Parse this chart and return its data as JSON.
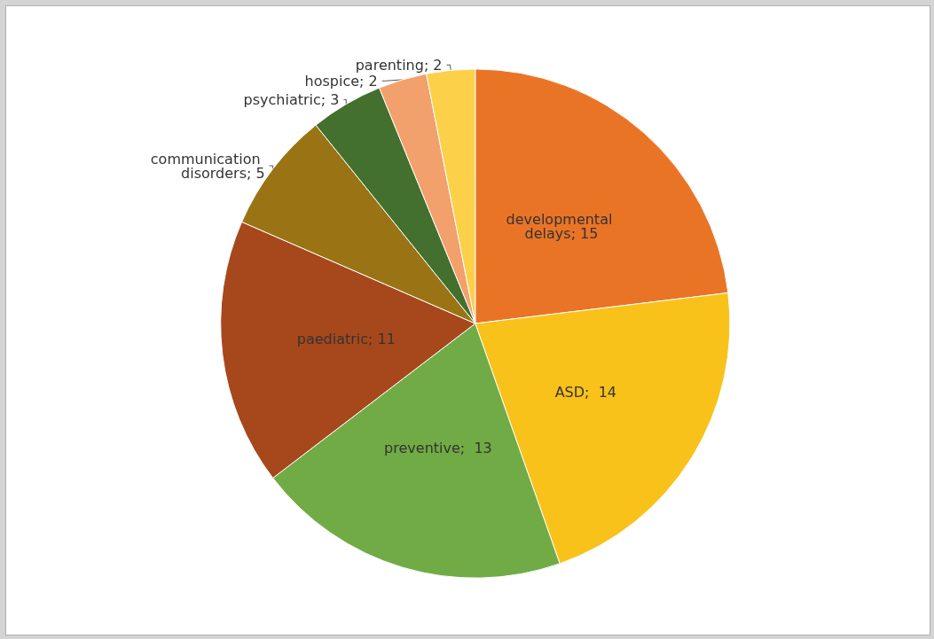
{
  "chart_data": {
    "type": "pie",
    "categories": [
      "developmental delays",
      "ASD",
      "preventive",
      "paediatric",
      "communication disorders",
      "psychiatric",
      "hospice",
      "parenting"
    ],
    "values": [
      15,
      14,
      13,
      11,
      5,
      3,
      2,
      2
    ],
    "colors": [
      "#ea7426",
      "#f9c21a",
      "#71ab45",
      "#a7481c",
      "#9a7414",
      "#43702e",
      "#f2a06c",
      "#fdd04a"
    ],
    "value_labels": [
      "; 15",
      ";  14",
      ";  13",
      "; 11",
      "; 5",
      "; 3",
      "; 2",
      "; 2"
    ]
  }
}
